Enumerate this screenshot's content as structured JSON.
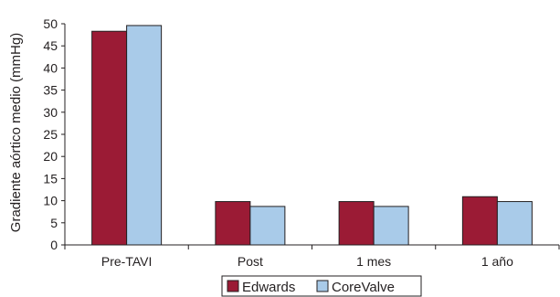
{
  "chart_data": {
    "type": "bar",
    "title": "",
    "xlabel": "",
    "ylabel": "Gradiente aórtico medio (mmHg)",
    "categories": [
      "Pre-TAVI",
      "Post",
      "1 mes",
      "1 año"
    ],
    "series": [
      {
        "name": "Edwards",
        "color": "#9b1b35",
        "values": [
          48.3,
          9.8,
          9.8,
          10.9
        ]
      },
      {
        "name": "CoreValve",
        "color": "#a9cbe9",
        "values": [
          49.6,
          8.7,
          8.7,
          9.8
        ]
      }
    ],
    "ylim": [
      0,
      50
    ],
    "yticks": [
      0,
      5,
      10,
      15,
      20,
      25,
      30,
      35,
      40,
      45,
      50
    ],
    "grid": false,
    "legend_position": "bottom-center"
  }
}
